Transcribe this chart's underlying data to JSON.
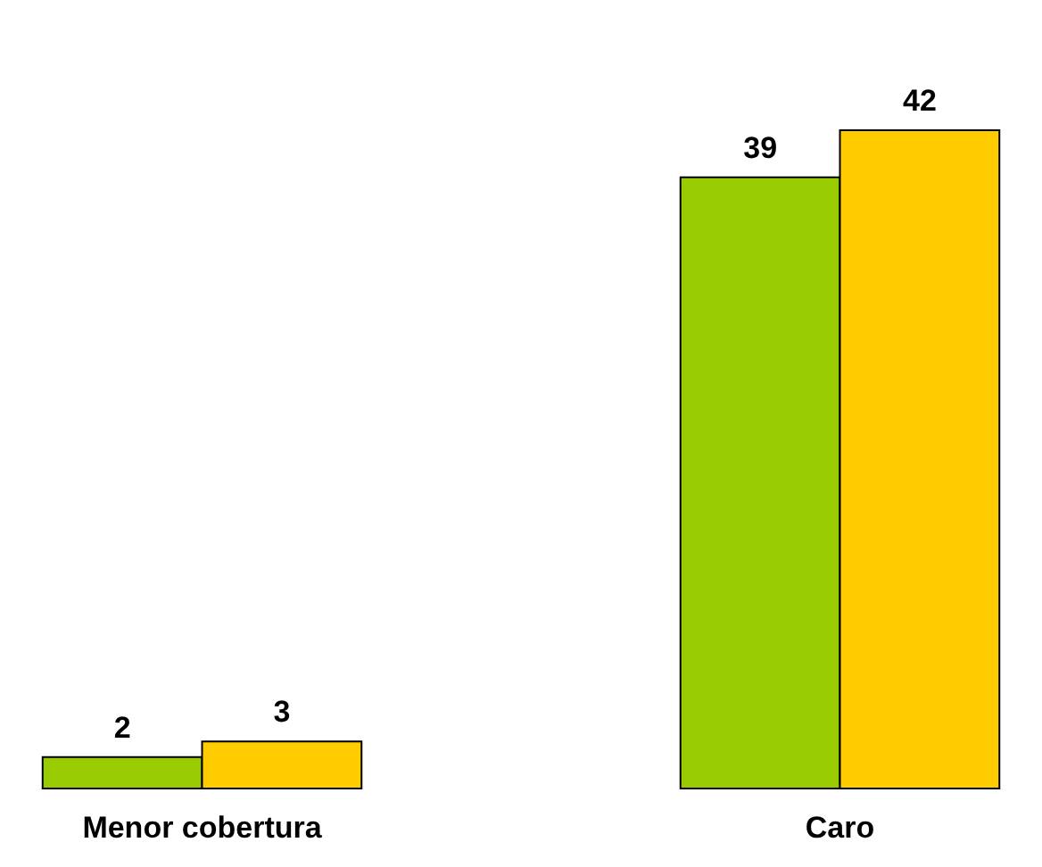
{
  "chart_data": {
    "type": "bar",
    "categories": [
      "Menor cobertura",
      "Caro"
    ],
    "series": [
      {
        "color": "#99cc00",
        "values": [
          2,
          39
        ]
      },
      {
        "color": "#ffcc00",
        "values": [
          3,
          42
        ]
      }
    ],
    "data_labels": true,
    "legend": false,
    "grid": false
  }
}
